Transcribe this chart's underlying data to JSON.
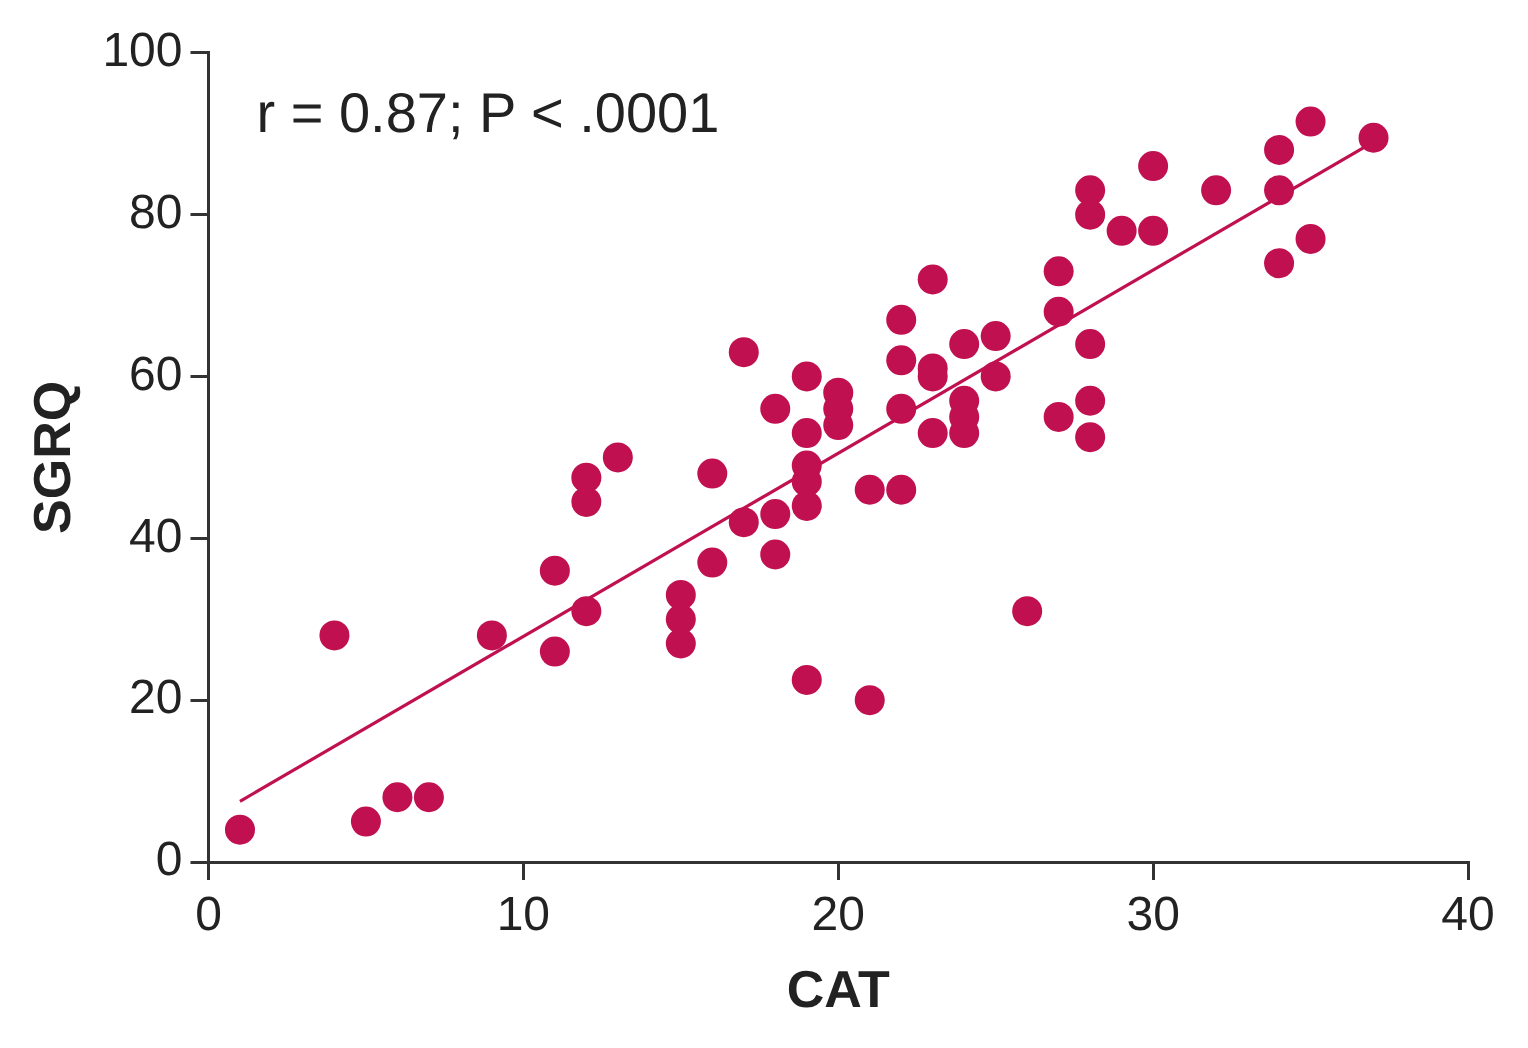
{
  "chart_data": {
    "type": "scatter",
    "xlabel": "CAT",
    "ylabel": "SGRQ",
    "annotations": [
      "r = 0.87; P < .0001"
    ],
    "xlim": [
      0,
      40
    ],
    "xticks": [
      0,
      10,
      20,
      30,
      40
    ],
    "ylim": [
      0,
      100
    ],
    "yticks": [
      0,
      20,
      40,
      60,
      80,
      100
    ],
    "grid": false,
    "legend": false,
    "series": [
      {
        "marker": "circle",
        "color": "#c0104f",
        "x": [
          1,
          4,
          5,
          6,
          7,
          9,
          11,
          11,
          12,
          12,
          12,
          13,
          15,
          15,
          15,
          16,
          16,
          17,
          17,
          18,
          18,
          18,
          19,
          19,
          19,
          19,
          19,
          19,
          20,
          20,
          20,
          21,
          21,
          22,
          22,
          22,
          22,
          23,
          23,
          23,
          23,
          24,
          24,
          24,
          24,
          25,
          25,
          26,
          27,
          27,
          27,
          28,
          28,
          28,
          28,
          28,
          29,
          30,
          30,
          32,
          34,
          34,
          34,
          35,
          35,
          37
        ],
        "values": [
          4,
          28,
          5,
          8,
          8,
          28,
          36,
          26,
          47.5,
          44.5,
          31,
          50,
          33,
          30,
          27,
          48,
          37,
          63,
          42,
          56,
          43,
          38,
          60,
          53,
          49,
          47,
          44,
          22.5,
          58,
          56,
          54,
          46,
          20,
          67,
          62,
          56,
          46,
          72,
          61,
          60,
          53,
          64,
          57,
          55,
          53,
          65,
          60,
          31,
          73,
          68,
          55,
          83,
          80,
          64,
          57,
          52.5,
          78,
          86,
          78,
          83,
          88,
          83,
          74,
          91.5,
          77,
          89.5
        ]
      },
      {
        "type": "line",
        "marker": "none",
        "color": "#c0104f",
        "x": [
          1,
          37
        ],
        "values": [
          7.5,
          89
        ]
      }
    ]
  }
}
